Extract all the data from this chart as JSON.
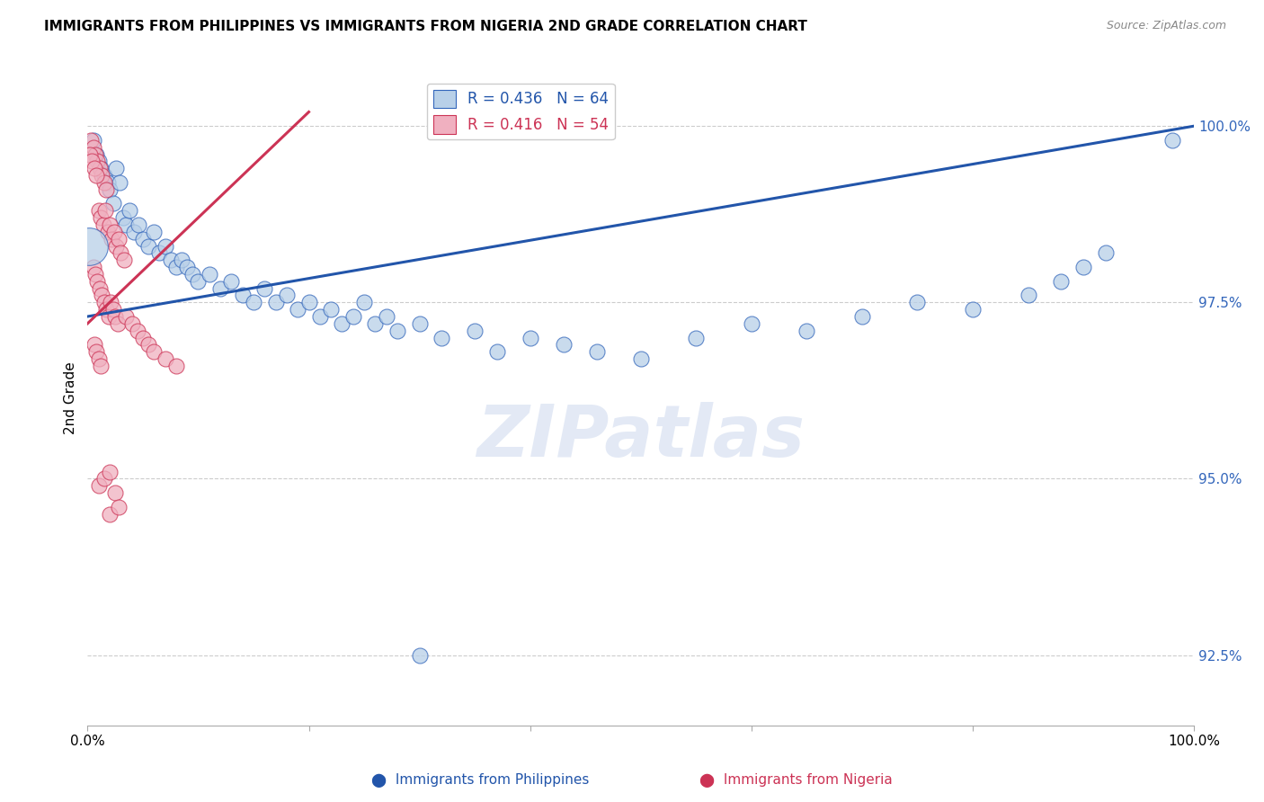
{
  "title": "IMMIGRANTS FROM PHILIPPINES VS IMMIGRANTS FROM NIGERIA 2ND GRADE CORRELATION CHART",
  "source": "Source: ZipAtlas.com",
  "ylabel": "2nd Grade",
  "xlim": [
    0,
    100
  ],
  "ylim": [
    91.5,
    100.8
  ],
  "yticks": [
    92.5,
    95.0,
    97.5,
    100.0
  ],
  "ytick_labels": [
    "92.5%",
    "95.0%",
    "97.5%",
    "100.0%"
  ],
  "legend_blue_r": "R = 0.436",
  "legend_blue_n": "N = 64",
  "legend_pink_r": "R = 0.416",
  "legend_pink_n": "N = 54",
  "blue_fill": "#b8d0e8",
  "pink_fill": "#f0b0c0",
  "blue_edge": "#3366bb",
  "pink_edge": "#cc3355",
  "blue_line": "#2255aa",
  "pink_line": "#cc3355",
  "blue_line_x": [
    0,
    100
  ],
  "blue_line_y": [
    97.3,
    100.0
  ],
  "pink_line_x": [
    0,
    20
  ],
  "pink_line_y": [
    97.2,
    100.2
  ],
  "watermark_text": "ZIPatlas",
  "background": "#ffffff",
  "blue_dots": [
    [
      0.5,
      99.8
    ],
    [
      0.8,
      99.6
    ],
    [
      1.0,
      99.5
    ],
    [
      1.2,
      99.4
    ],
    [
      1.5,
      99.3
    ],
    [
      1.8,
      99.2
    ],
    [
      2.0,
      99.1
    ],
    [
      2.3,
      98.9
    ],
    [
      2.6,
      99.4
    ],
    [
      2.9,
      99.2
    ],
    [
      3.2,
      98.7
    ],
    [
      3.5,
      98.6
    ],
    [
      3.8,
      98.8
    ],
    [
      4.2,
      98.5
    ],
    [
      4.6,
      98.6
    ],
    [
      5.0,
      98.4
    ],
    [
      5.5,
      98.3
    ],
    [
      6.0,
      98.5
    ],
    [
      6.5,
      98.2
    ],
    [
      7.0,
      98.3
    ],
    [
      7.5,
      98.1
    ],
    [
      8.0,
      98.0
    ],
    [
      8.5,
      98.1
    ],
    [
      9.0,
      98.0
    ],
    [
      9.5,
      97.9
    ],
    [
      10.0,
      97.8
    ],
    [
      11.0,
      97.9
    ],
    [
      12.0,
      97.7
    ],
    [
      13.0,
      97.8
    ],
    [
      14.0,
      97.6
    ],
    [
      15.0,
      97.5
    ],
    [
      16.0,
      97.7
    ],
    [
      17.0,
      97.5
    ],
    [
      18.0,
      97.6
    ],
    [
      19.0,
      97.4
    ],
    [
      20.0,
      97.5
    ],
    [
      21.0,
      97.3
    ],
    [
      22.0,
      97.4
    ],
    [
      23.0,
      97.2
    ],
    [
      24.0,
      97.3
    ],
    [
      25.0,
      97.5
    ],
    [
      26.0,
      97.2
    ],
    [
      27.0,
      97.3
    ],
    [
      28.0,
      97.1
    ],
    [
      30.0,
      97.2
    ],
    [
      32.0,
      97.0
    ],
    [
      35.0,
      97.1
    ],
    [
      37.0,
      96.8
    ],
    [
      40.0,
      97.0
    ],
    [
      43.0,
      96.9
    ],
    [
      46.0,
      96.8
    ],
    [
      50.0,
      96.7
    ],
    [
      55.0,
      97.0
    ],
    [
      60.0,
      97.2
    ],
    [
      65.0,
      97.1
    ],
    [
      70.0,
      97.3
    ],
    [
      75.0,
      97.5
    ],
    [
      80.0,
      97.4
    ],
    [
      85.0,
      97.6
    ],
    [
      88.0,
      97.8
    ],
    [
      90.0,
      98.0
    ],
    [
      92.0,
      98.2
    ],
    [
      98.0,
      99.8
    ],
    [
      30.0,
      92.5
    ]
  ],
  "pink_dots": [
    [
      0.3,
      99.8
    ],
    [
      0.5,
      99.7
    ],
    [
      0.7,
      99.6
    ],
    [
      0.9,
      99.5
    ],
    [
      1.1,
      99.4
    ],
    [
      1.3,
      99.3
    ],
    [
      1.5,
      99.2
    ],
    [
      1.7,
      99.1
    ],
    [
      0.2,
      99.6
    ],
    [
      0.4,
      99.5
    ],
    [
      0.6,
      99.4
    ],
    [
      0.8,
      99.3
    ],
    [
      1.0,
      98.8
    ],
    [
      1.2,
      98.7
    ],
    [
      1.4,
      98.6
    ],
    [
      1.6,
      98.8
    ],
    [
      1.8,
      98.5
    ],
    [
      2.0,
      98.6
    ],
    [
      2.2,
      98.4
    ],
    [
      2.4,
      98.5
    ],
    [
      2.6,
      98.3
    ],
    [
      2.8,
      98.4
    ],
    [
      3.0,
      98.2
    ],
    [
      3.3,
      98.1
    ],
    [
      0.5,
      98.0
    ],
    [
      0.7,
      97.9
    ],
    [
      0.9,
      97.8
    ],
    [
      1.1,
      97.7
    ],
    [
      1.3,
      97.6
    ],
    [
      1.5,
      97.5
    ],
    [
      1.7,
      97.4
    ],
    [
      1.9,
      97.3
    ],
    [
      2.1,
      97.5
    ],
    [
      2.3,
      97.4
    ],
    [
      2.5,
      97.3
    ],
    [
      2.7,
      97.2
    ],
    [
      3.5,
      97.3
    ],
    [
      4.0,
      97.2
    ],
    [
      4.5,
      97.1
    ],
    [
      5.0,
      97.0
    ],
    [
      5.5,
      96.9
    ],
    [
      6.0,
      96.8
    ],
    [
      7.0,
      96.7
    ],
    [
      8.0,
      96.6
    ],
    [
      0.6,
      96.9
    ],
    [
      0.8,
      96.8
    ],
    [
      1.0,
      96.7
    ],
    [
      1.2,
      96.6
    ],
    [
      1.0,
      94.9
    ],
    [
      1.5,
      95.0
    ],
    [
      2.0,
      95.1
    ],
    [
      2.5,
      94.8
    ],
    [
      2.0,
      94.5
    ],
    [
      2.8,
      94.6
    ]
  ],
  "big_blue_dot_x": 0.1,
  "big_blue_dot_y": 98.3,
  "big_blue_dot_size": 900
}
